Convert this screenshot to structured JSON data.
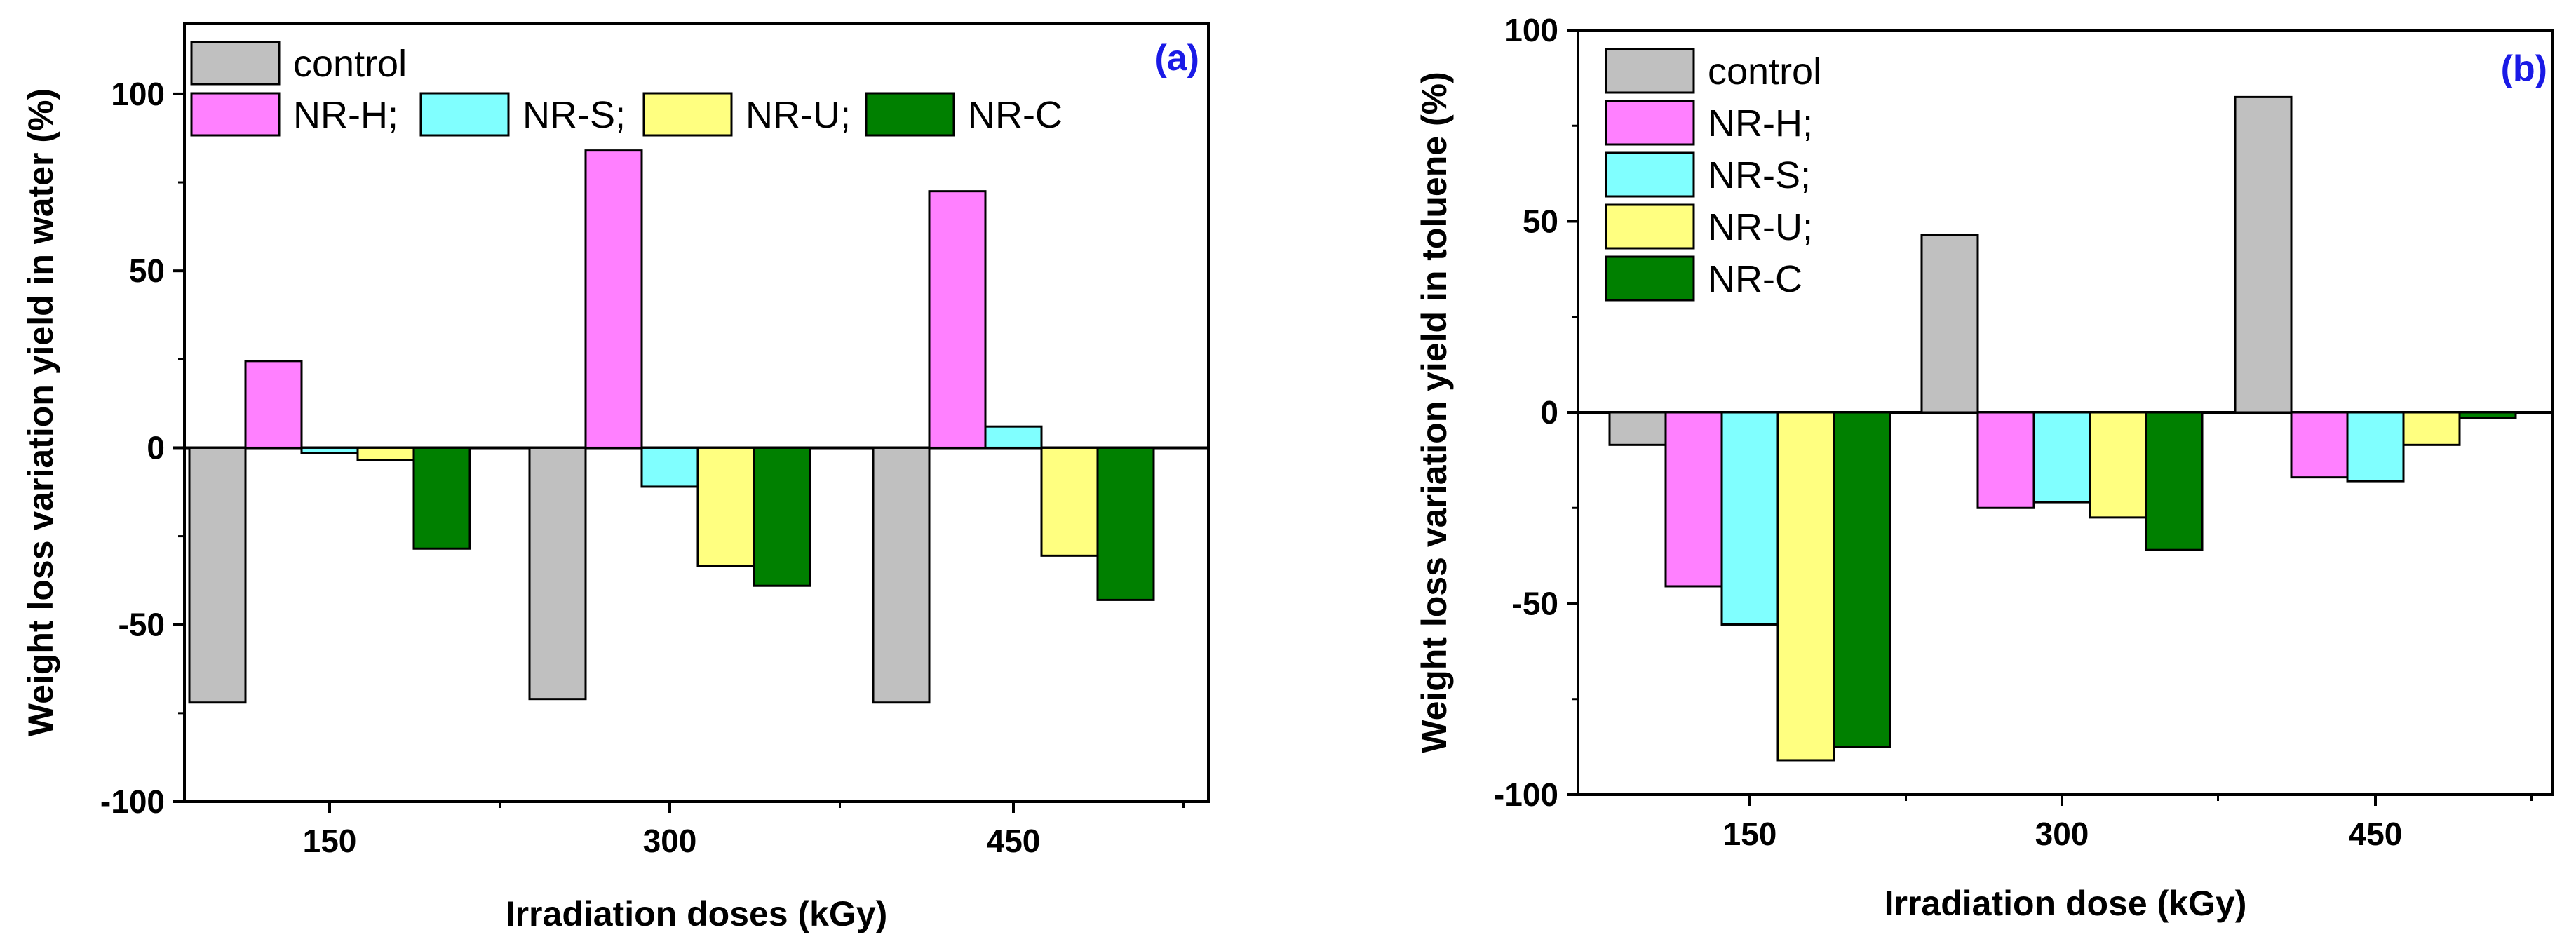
{
  "chart_data": [
    {
      "type": "bar",
      "panel_label": "(a)",
      "title": "",
      "xlabel": "Irradiation doses (kGy)",
      "ylabel": "Weight loss variation yield in water (%)",
      "ylim": [
        -100,
        120
      ],
      "yticks": [
        -100,
        -50,
        0,
        50,
        100
      ],
      "yticklabels": [
        "-100",
        "-50",
        "0",
        "50",
        "100"
      ],
      "categories": [
        "150",
        "300",
        "450"
      ],
      "legend_position": "top-left, two rows",
      "series": [
        {
          "name": "control",
          "color": "#c0c0c0",
          "values": [
            -72,
            -71,
            -72
          ]
        },
        {
          "name": "NR-H;",
          "color": "#ff80ff",
          "values": [
            24.5,
            84,
            72.5
          ]
        },
        {
          "name": "NR-S;",
          "color": "#80ffff",
          "values": [
            -1.5,
            -11,
            6
          ]
        },
        {
          "name": "NR-U;",
          "color": "#ffff80",
          "values": [
            -3.5,
            -33.5,
            -30.5
          ]
        },
        {
          "name": "NR-C",
          "color": "#008000",
          "values": [
            -28.5,
            -39,
            -43
          ]
        }
      ]
    },
    {
      "type": "bar",
      "panel_label": "(b)",
      "title": "",
      "xlabel": "Irradiation dose (kGy)",
      "ylabel": "Weight loss variation yield in toluene (%)",
      "ylim": [
        -100,
        100
      ],
      "yticks": [
        -100,
        -50,
        0,
        50,
        100
      ],
      "yticklabels": [
        "-100",
        "-50",
        "0",
        "50",
        "100"
      ],
      "categories": [
        "150",
        "300",
        "450"
      ],
      "legend_position": "top-left, vertical",
      "series": [
        {
          "name": "control",
          "color": "#c0c0c0",
          "values": [
            -8.5,
            46.5,
            82.5
          ]
        },
        {
          "name": "NR-H;",
          "color": "#ff80ff",
          "values": [
            -45.5,
            -25,
            -17
          ]
        },
        {
          "name": "NR-S;",
          "color": "#80ffff",
          "values": [
            -55.5,
            -23.5,
            -18
          ]
        },
        {
          "name": "NR-U;",
          "color": "#ffff80",
          "values": [
            -91,
            -27.5,
            -8.5
          ]
        },
        {
          "name": "NR-C",
          "color": "#008000",
          "values": [
            -87.5,
            -36,
            -1.5
          ]
        }
      ]
    }
  ]
}
